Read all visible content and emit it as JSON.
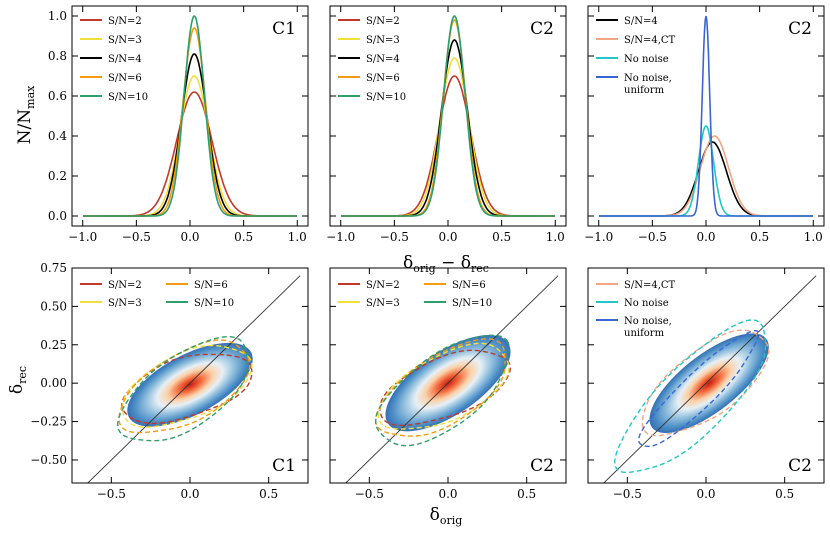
{
  "figure": {
    "top_xlabel": "δorig − δrec",
    "top_ylabel": "N/Nmax",
    "bottom_xlabel": "δorig",
    "bottom_ylabel": "δrec"
  },
  "colors": {
    "sn2": "#c0392b",
    "sn3": "#f1e03a",
    "sn4": "#000000",
    "sn6": "#f39c12",
    "sn10": "#2e9e6a",
    "ct": "#f4a582",
    "nonoise": "#1ec8c8",
    "uniform": "#3a66d4"
  },
  "chart_data": [
    {
      "type": "line",
      "panel_label": "C1",
      "xlim": [
        -1.1,
        1.1
      ],
      "ylim": [
        -0.05,
        1.05
      ],
      "xticks": [
        -1.0,
        -0.5,
        0.0,
        0.5,
        1.0
      ],
      "yticks": [
        0.0,
        0.2,
        0.4,
        0.6,
        0.8,
        1.0
      ],
      "series": [
        {
          "name": "S/N=2",
          "color_key": "sn2",
          "mu": 0.04,
          "sigma": 0.165,
          "peak": 0.62
        },
        {
          "name": "S/N=3",
          "color_key": "sn3",
          "mu": 0.04,
          "sigma": 0.135,
          "peak": 0.7
        },
        {
          "name": "S/N=4",
          "color_key": "sn4",
          "mu": 0.04,
          "sigma": 0.12,
          "peak": 0.81
        },
        {
          "name": "S/N=6",
          "color_key": "sn6",
          "mu": 0.04,
          "sigma": 0.105,
          "peak": 0.94
        },
        {
          "name": "S/N=10",
          "color_key": "sn10",
          "mu": 0.04,
          "sigma": 0.095,
          "peak": 1.0
        }
      ]
    },
    {
      "type": "line",
      "panel_label": "C2",
      "xlim": [
        -1.1,
        1.1
      ],
      "ylim": [
        -0.05,
        1.05
      ],
      "xticks": [
        -1.0,
        -0.5,
        0.0,
        0.5,
        1.0
      ],
      "yticks": [
        0.0,
        0.2,
        0.4,
        0.6,
        0.8,
        1.0
      ],
      "series": [
        {
          "name": "S/N=2",
          "color_key": "sn2",
          "mu": 0.06,
          "sigma": 0.15,
          "peak": 0.7
        },
        {
          "name": "S/N=3",
          "color_key": "sn3",
          "mu": 0.06,
          "sigma": 0.135,
          "peak": 0.79
        },
        {
          "name": "S/N=4",
          "color_key": "sn4",
          "mu": 0.06,
          "sigma": 0.12,
          "peak": 0.88
        },
        {
          "name": "S/N=6",
          "color_key": "sn6",
          "mu": 0.06,
          "sigma": 0.105,
          "peak": 0.98
        },
        {
          "name": "S/N=10",
          "color_key": "sn10",
          "mu": 0.06,
          "sigma": 0.1,
          "peak": 1.0
        }
      ]
    },
    {
      "type": "line",
      "panel_label": "C2",
      "xlim": [
        -1.1,
        1.1
      ],
      "ylim": [
        -0.05,
        1.05
      ],
      "xticks": [
        -1.0,
        -0.5,
        0.0,
        0.5,
        1.0
      ],
      "yticks": [
        0.0,
        0.2,
        0.4,
        0.6,
        0.8,
        1.0
      ],
      "series": [
        {
          "name": "S/N=4",
          "color_key": "sn4",
          "mu": 0.06,
          "sigma": 0.13,
          "peak": 0.37
        },
        {
          "name": "S/N=4,CT",
          "color_key": "ct",
          "mu": 0.08,
          "sigma": 0.13,
          "peak": 0.4
        },
        {
          "name": "No noise",
          "color_key": "nonoise",
          "mu": 0.0,
          "sigma": 0.07,
          "peak": 0.45
        },
        {
          "name": "No noise, uniform",
          "name_lines": [
            "No noise,",
            "uniform"
          ],
          "color_key": "uniform",
          "mu": 0.0,
          "sigma": 0.035,
          "peak": 1.0
        }
      ]
    },
    {
      "type": "scatter",
      "panel_label": "C1",
      "xlim": [
        -0.75,
        0.75
      ],
      "ylim": [
        -0.65,
        0.75
      ],
      "xticks": [
        -0.5,
        0.0,
        0.5
      ],
      "yticks": [
        -0.5,
        -0.25,
        0.0,
        0.25,
        0.5,
        0.75
      ],
      "density": {
        "cx": 0.0,
        "cy": -0.01,
        "angle_deg": 28,
        "major": 0.44,
        "minor": 0.19
      },
      "contours": [
        {
          "name": "S/N=2",
          "color_key": "sn2",
          "cx": -0.02,
          "cy": -0.03,
          "angle_deg": 18,
          "major": 0.43,
          "minor": 0.19
        },
        {
          "name": "S/N=3",
          "color_key": "sn3",
          "cx": -0.02,
          "cy": -0.02,
          "angle_deg": 24,
          "major": 0.44,
          "minor": 0.21
        },
        {
          "name": "S/N=6",
          "color_key": "sn6",
          "cx": -0.03,
          "cy": -0.03,
          "angle_deg": 30,
          "major": 0.46,
          "minor": 0.22
        },
        {
          "name": "S/N=10",
          "color_key": "sn10",
          "cx": -0.03,
          "cy": -0.05,
          "angle_deg": 36,
          "major": 0.48,
          "minor": 0.23
        }
      ]
    },
    {
      "type": "scatter",
      "panel_label": "C2",
      "xlim": [
        -0.75,
        0.75
      ],
      "ylim": [
        -0.65,
        0.75
      ],
      "xticks": [
        -0.5,
        0.0,
        0.5
      ],
      "yticks": [
        -0.5,
        -0.25,
        0.0,
        0.25,
        0.5,
        0.75
      ],
      "density": {
        "cx": 0.0,
        "cy": 0.0,
        "angle_deg": 34,
        "major": 0.46,
        "minor": 0.2
      },
      "contours": [
        {
          "name": "S/N=2",
          "color_key": "sn2",
          "cx": -0.02,
          "cy": -0.03,
          "angle_deg": 22,
          "major": 0.44,
          "minor": 0.19
        },
        {
          "name": "S/N=3",
          "color_key": "sn3",
          "cx": -0.02,
          "cy": -0.03,
          "angle_deg": 27,
          "major": 0.45,
          "minor": 0.21
        },
        {
          "name": "S/N=6",
          "color_key": "sn6",
          "cx": -0.03,
          "cy": -0.04,
          "angle_deg": 33,
          "major": 0.47,
          "minor": 0.22
        },
        {
          "name": "S/N=10",
          "color_key": "sn10",
          "cx": -0.03,
          "cy": -0.05,
          "angle_deg": 38,
          "major": 0.5,
          "minor": 0.23
        }
      ]
    },
    {
      "type": "scatter",
      "panel_label": "C2",
      "xlim": [
        -0.75,
        0.75
      ],
      "ylim": [
        -0.65,
        0.75
      ],
      "xticks": [
        -0.5,
        0.0,
        0.5
      ],
      "yticks": [
        -0.5,
        -0.25,
        0.0,
        0.25,
        0.5,
        0.75
      ],
      "density": {
        "cx": 0.02,
        "cy": 0.0,
        "angle_deg": 38,
        "major": 0.46,
        "minor": 0.18
      },
      "contours": [
        {
          "name": "S/N=4,CT",
          "color_key": "ct",
          "cx": 0.0,
          "cy": 0.0,
          "angle_deg": 38,
          "major": 0.48,
          "minor": 0.21
        },
        {
          "name": "No noise",
          "color_key": "nonoise",
          "cx": -0.08,
          "cy": -0.1,
          "angle_deg": 46,
          "major": 0.65,
          "minor": 0.22
        },
        {
          "name": "No noise, uniform",
          "name_lines": [
            "No noise,",
            "uniform"
          ],
          "color_key": "uniform",
          "cx": -0.05,
          "cy": -0.05,
          "angle_deg": 45,
          "major": 0.52,
          "minor": 0.11
        }
      ]
    }
  ]
}
